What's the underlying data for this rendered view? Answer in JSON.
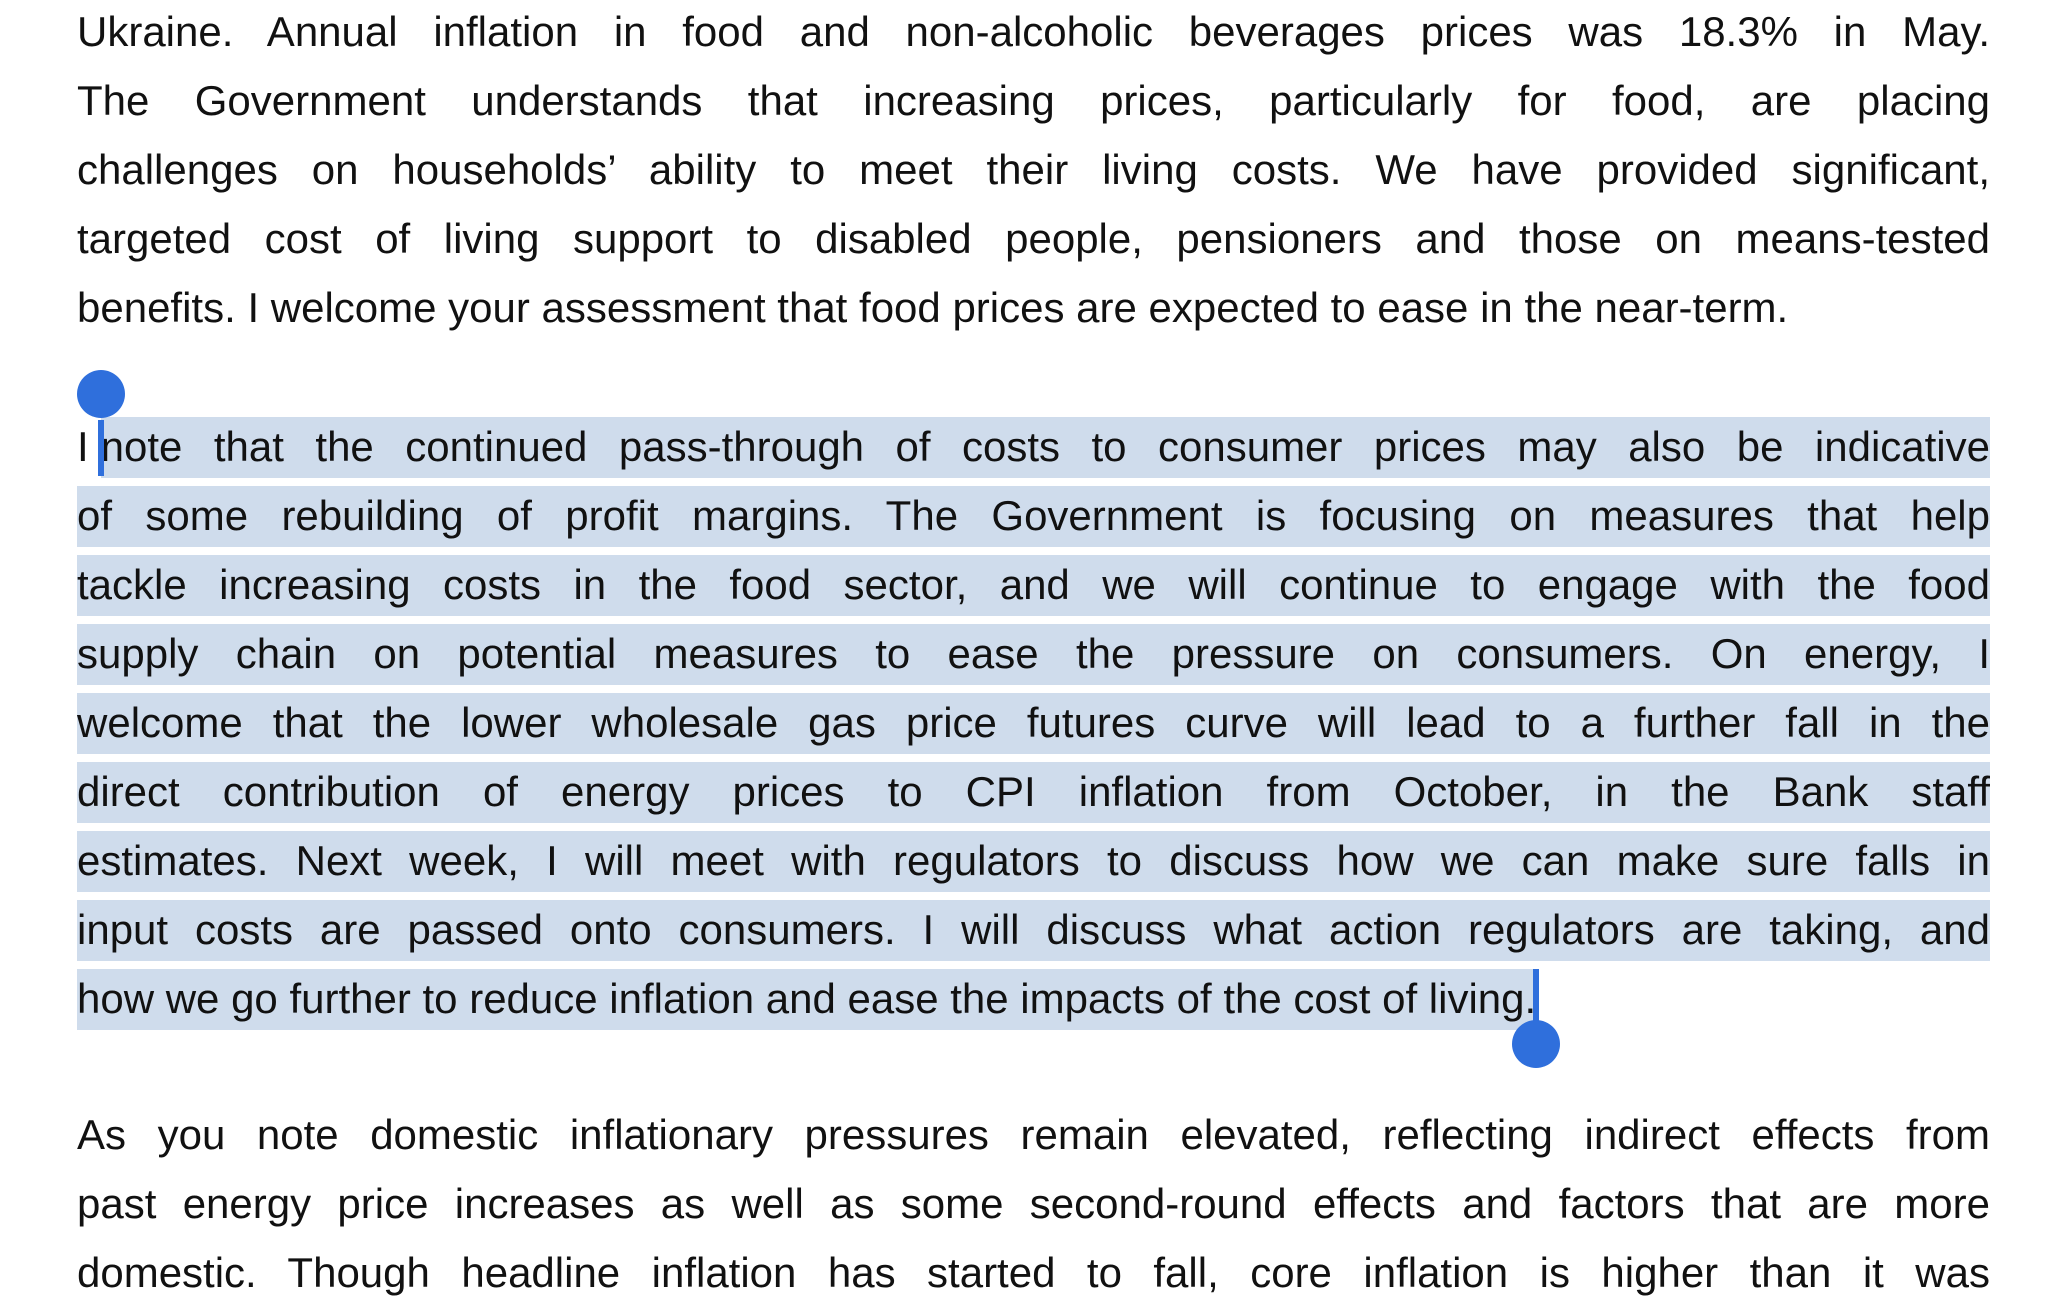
{
  "paragraphs": [
    {
      "lines": [
        "Ukraine. Annual inflation in food and non-alcoholic beverages prices was 18.3% in May.",
        "The Government understands that increasing prices, particularly for food, are placing",
        "challenges on households’ ability to meet their living costs. We have provided significant,",
        "targeted cost of living support to disabled people, pensioners and those on means-tested",
        "benefits. I welcome your assessment that food prices are expected to ease in the near-term."
      ]
    },
    {
      "prefix": "I",
      "lines": [
        "note that the continued pass-through of costs to consumer prices may also be indicative",
        "of some rebuilding of profit margins. The Government is focusing on measures that help",
        "tackle increasing costs in the food sector, and we will continue to engage with the food",
        "supply chain on potential measures to ease the pressure on consumers. On energy, I",
        "welcome that the lower wholesale gas price futures curve will lead to a further fall in the",
        "direct contribution of energy prices to CPI inflation from October, in the Bank staff",
        "estimates. Next week, I will meet with regulators to discuss how we can make sure falls in",
        "input costs are passed onto consumers. I will discuss what action regulators are taking, and",
        "how we go further to reduce inflation and ease the impacts of the cost of living."
      ]
    },
    {
      "lines": [
        "As you note domestic inflationary pressures remain elevated, reflecting indirect effects from",
        "past energy price increases as well as some second-round effects and factors that are more",
        "domestic. Though headline inflation has started to fall, core inflation is higher than it was"
      ]
    }
  ]
}
